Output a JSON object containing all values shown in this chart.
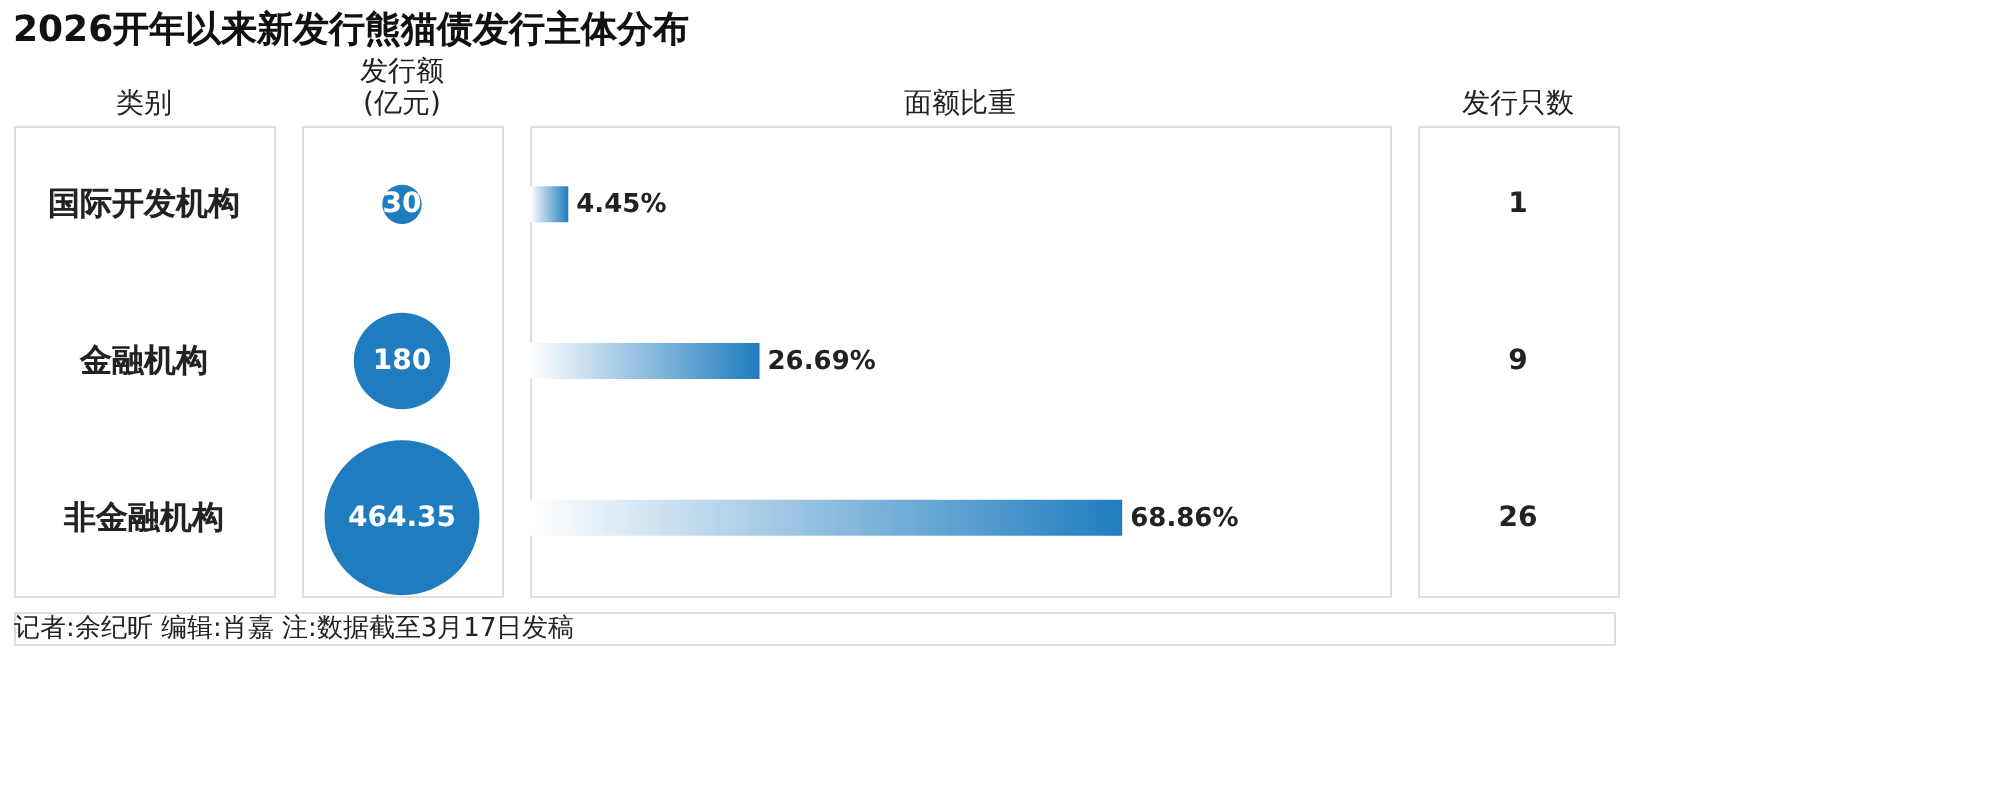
{
  "chart_data": [
    {
      "type": "bar",
      "orientation": "horizontal",
      "title": "2026开年以来新发行熊猫债发行主体分布",
      "ylabel": "类别",
      "xlabel": "面额比重",
      "categories": [
        "国际开发机构",
        "金融机构",
        "非金融机构"
      ],
      "values": [
        4.45,
        26.69,
        68.86
      ],
      "value_labels": [
        "4.45%",
        "26.69%",
        "68.86%"
      ],
      "color": "#1f7dbf",
      "xlim": [
        0,
        100
      ],
      "tick_labels": "y",
      "annotations": [
        "记者:余纪昕 编辑:肖嘉 注:数据截至3月17日发稿"
      ]
    },
    {
      "type": "other",
      "xlabel": "发行额(亿元)",
      "values": [
        30,
        180,
        464.35
      ],
      "color": "#1f7dbf",
      "data_labels": true
    },
    {
      "type": "other",
      "xlabel": "发行只数",
      "values": [
        1,
        9,
        26
      ],
      "data_labels": true
    }
  ]
}
